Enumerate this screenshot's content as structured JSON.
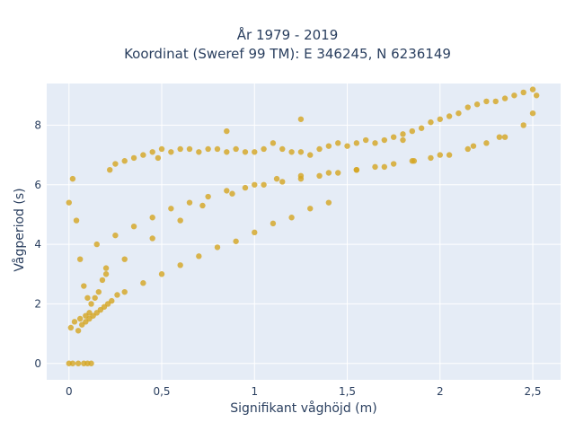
{
  "chart_data": {
    "type": "scatter",
    "title": "År 1979 - 2019",
    "subtitle": "Koordinat (Sweref 99 TM): E 346245, N 6236149",
    "xlabel": "Signifikant våghöjd (m)",
    "ylabel": "Vågperiod (s)",
    "xlim": [
      -0.12,
      2.65
    ],
    "ylim": [
      -0.55,
      9.4
    ],
    "x_ticks": [
      0,
      0.5,
      1,
      1.5,
      2,
      2.5
    ],
    "x_tick_labels": [
      "0",
      "0,5",
      "1",
      "1,5",
      "2",
      "2,5"
    ],
    "y_ticks": [
      0,
      2,
      4,
      6,
      8
    ],
    "y_tick_labels": [
      "0",
      "2",
      "4",
      "6",
      "8"
    ],
    "grid": true,
    "point_color": "#D4A520",
    "background_color": "#E5ECF6",
    "series": [
      {
        "x": [
          0.0,
          0.02,
          0.05,
          0.08,
          0.1,
          0.12,
          0.01,
          0.03,
          0.06,
          0.09,
          0.11,
          0.0,
          0.02,
          0.04,
          0.06,
          0.08,
          0.1,
          0.12,
          0.14,
          0.16,
          0.18,
          0.2,
          0.22,
          0.25,
          0.05,
          0.07,
          0.09,
          0.11,
          0.13,
          0.15,
          0.17,
          0.19,
          0.21,
          0.23,
          0.26,
          0.3,
          0.35,
          0.4,
          0.45,
          0.5,
          0.55,
          0.6,
          0.65,
          0.7,
          0.75,
          0.8,
          0.85,
          0.9,
          0.95,
          1.0,
          1.05,
          1.1,
          1.15,
          1.2,
          1.25,
          1.3,
          1.35,
          1.4,
          1.45,
          1.5,
          1.55,
          1.6,
          1.65,
          1.7,
          1.75,
          1.8,
          1.85,
          1.9,
          1.95,
          2.0,
          2.05,
          2.1,
          2.15,
          2.2,
          2.25,
          2.3,
          2.35,
          2.4,
          2.45,
          2.5,
          2.52,
          0.3,
          0.4,
          0.5,
          0.6,
          0.7,
          0.8,
          0.9,
          1.0,
          1.1,
          1.2,
          1.3,
          1.4,
          0.15,
          0.25,
          0.35,
          0.45,
          0.55,
          0.65,
          0.75,
          0.85,
          0.95,
          1.05,
          1.15,
          1.25,
          1.35,
          1.45,
          1.55,
          1.65,
          1.75,
          1.85,
          1.95,
          2.05,
          2.15,
          2.25,
          2.35,
          0.2,
          0.3,
          0.45,
          0.6,
          0.72,
          0.88,
          1.0,
          1.12,
          1.25,
          1.4,
          1.55,
          1.7,
          1.86,
          2.0,
          2.18,
          2.32,
          2.45,
          0.85,
          1.25,
          1.8,
          0.48,
          2.5
        ],
        "y": [
          0.0,
          0.0,
          0.0,
          0.0,
          0.0,
          0.0,
          1.2,
          1.4,
          1.5,
          1.6,
          1.7,
          5.4,
          6.2,
          4.8,
          3.5,
          2.6,
          2.2,
          2.0,
          2.2,
          2.4,
          2.8,
          3.2,
          6.5,
          6.7,
          1.1,
          1.3,
          1.4,
          1.5,
          1.6,
          1.7,
          1.8,
          1.9,
          2.0,
          2.1,
          2.3,
          6.8,
          6.9,
          7.0,
          7.1,
          7.2,
          7.1,
          7.2,
          7.2,
          7.1,
          7.2,
          7.2,
          7.1,
          7.2,
          7.1,
          7.1,
          7.2,
          7.4,
          7.2,
          7.1,
          7.1,
          7.0,
          7.2,
          7.3,
          7.4,
          7.3,
          7.4,
          7.5,
          7.4,
          7.5,
          7.6,
          7.7,
          7.8,
          7.9,
          8.1,
          8.2,
          8.3,
          8.4,
          8.6,
          8.7,
          8.8,
          8.8,
          8.9,
          9.0,
          9.1,
          9.2,
          9.0,
          2.4,
          2.7,
          3.0,
          3.3,
          3.6,
          3.9,
          4.1,
          4.4,
          4.7,
          4.9,
          5.2,
          5.4,
          4.0,
          4.3,
          4.6,
          4.9,
          5.2,
          5.4,
          5.6,
          5.8,
          5.9,
          6.0,
          6.1,
          6.2,
          6.3,
          6.4,
          6.5,
          6.6,
          6.7,
          6.8,
          6.9,
          7.0,
          7.2,
          7.4,
          7.6,
          3.0,
          3.5,
          4.2,
          4.8,
          5.3,
          5.7,
          6.0,
          6.2,
          6.3,
          6.4,
          6.5,
          6.6,
          6.8,
          7.0,
          7.3,
          7.6,
          8.0,
          7.8,
          8.2,
          7.5,
          6.9,
          8.4
        ]
      }
    ]
  }
}
